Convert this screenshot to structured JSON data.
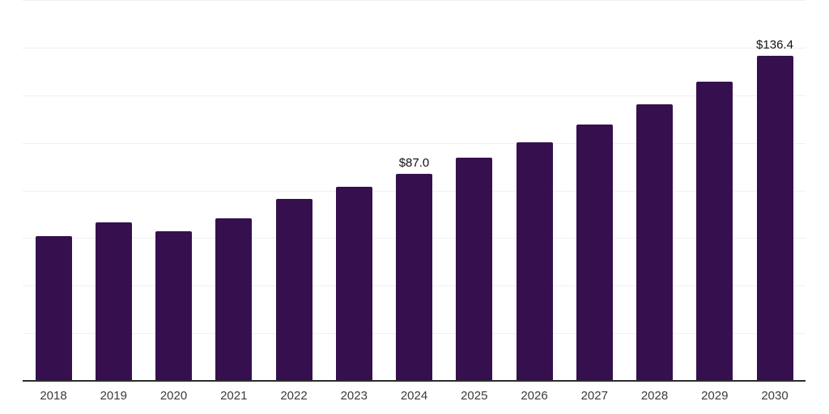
{
  "chart_data": {
    "type": "bar",
    "title": "",
    "xlabel": "",
    "ylabel": "",
    "categories": [
      "2018",
      "2019",
      "2020",
      "2021",
      "2022",
      "2023",
      "2024",
      "2025",
      "2026",
      "2027",
      "2028",
      "2029",
      "2030"
    ],
    "values": [
      60.7,
      66.7,
      63.0,
      68.4,
      76.3,
      81.4,
      87.0,
      93.9,
      100.1,
      107.8,
      116.2,
      125.8,
      136.4
    ],
    "data_labels": [
      {
        "category": "2024",
        "text": "$87.0"
      },
      {
        "category": "2030",
        "text": "$136.4"
      }
    ],
    "ylim": [
      0,
      160
    ],
    "gridline_step": 20,
    "grid": true,
    "y_tick_labels_visible": false,
    "legend": "none",
    "colors": {
      "bar": "#36104E",
      "gridline": "#f0f0f0",
      "axis": "#2b2b2b",
      "tick_text": "#3a3a3a",
      "data_label_text": "#111111",
      "background": "#ffffff"
    }
  }
}
